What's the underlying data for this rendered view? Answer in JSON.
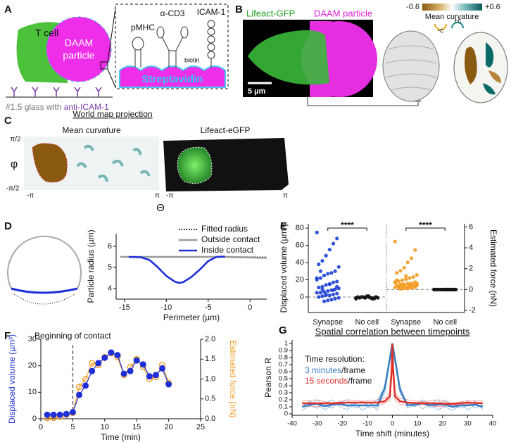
{
  "panel_a": {
    "label": "A",
    "cell": "T cell",
    "particle": [
      "DAAM",
      "particle"
    ],
    "pmhc": "pMHC",
    "cd3": "α-CD3",
    "icam": "ICAM-1",
    "biotin": "biotin",
    "streptavidin": "Streptavidin",
    "glass": "#1.5 glass with",
    "coating": "anti-ICAM-1"
  },
  "panel_b": {
    "label": "B",
    "channel_1": "Lifeact-GFP",
    "channel_2": "DAAM particle",
    "scale_bar": "5 µm",
    "colorbar_title": "Mean curvature",
    "colorbar_min": "-0.6",
    "colorbar_max": "+0.6",
    "neg": "-c",
    "pos": "+c"
  },
  "panel_c": {
    "label": "C",
    "title": "World map projection",
    "map_1": "Mean curvature",
    "map_2": "Lifeact-eGFP",
    "y_top": "π/2",
    "y_axis": "φ",
    "y_bottom": "-π/2",
    "x_left": "-π",
    "x_right": "π",
    "x_axis": "Θ"
  },
  "chart_data": [
    {
      "type": "line",
      "panel": "D",
      "xlabel": "Perimeter (µm)",
      "ylabel": "Particle radius (µm)",
      "xlim": [
        -16,
        2
      ],
      "xticks": [
        -15,
        -10,
        -5,
        0
      ],
      "ylim": [
        3.5,
        6.6
      ],
      "yticks": [
        4,
        5,
        6
      ],
      "legend": "upper right",
      "series": [
        {
          "name": "Fitted radius",
          "color": "#000000",
          "style": "dotted",
          "x": [
            -15.5,
            2
          ],
          "values": [
            5.5,
            5.5
          ]
        },
        {
          "name": "Outside contact",
          "color": "#999999",
          "style": "thick",
          "x": [
            -15.5,
            -14.5,
            -3,
            2
          ],
          "values": [
            5.5,
            5.5,
            5.5,
            5.45
          ]
        },
        {
          "name": "Inside contact",
          "color": "#1f2fd8",
          "style": "thick",
          "x": [
            -14.5,
            -13,
            -12,
            -11,
            -10,
            -9,
            -8.5,
            -8,
            -7,
            -6,
            -5,
            -4,
            -3
          ],
          "values": [
            5.5,
            5.48,
            5.35,
            5.0,
            4.6,
            4.33,
            4.27,
            4.3,
            4.55,
            4.9,
            5.3,
            5.5,
            5.52
          ]
        }
      ]
    },
    {
      "type": "strip",
      "panel": "E",
      "ylabel": "Displaced volume (µm³)",
      "y2label": "Estimated force (nN)",
      "categories": [
        "Synapse",
        "No cell",
        "Synapse",
        "No cell"
      ],
      "ylim": [
        -18,
        85
      ],
      "yticks": [
        0,
        20,
        40,
        60,
        80
      ],
      "y2lim": [
        -2.2,
        6.3
      ],
      "y2ticks": [
        -2,
        0,
        2,
        4,
        6
      ],
      "significance": [
        "****",
        "****"
      ],
      "series": [
        {
          "color": "#1c3fd6",
          "values": [
            75,
            68,
            62,
            55,
            48,
            42,
            38,
            35,
            30,
            28,
            27,
            25,
            22,
            20,
            18,
            17,
            15,
            14,
            12,
            11,
            10,
            9,
            8,
            7,
            6,
            5,
            5,
            4,
            3,
            2,
            2,
            1,
            0,
            -1,
            -2,
            -3,
            -4,
            -5,
            30,
            22,
            12,
            8,
            15,
            3,
            9
          ]
        },
        {
          "color": "#111111",
          "values": [
            -1,
            0,
            -2,
            1,
            -1,
            0,
            0,
            -1,
            -2,
            -1,
            1,
            0,
            -1,
            -2,
            0,
            -1,
            0,
            -1
          ]
        },
        {
          "color": "#f39a1e",
          "axis": "y2",
          "values": [
            4.6,
            3.8,
            3.0,
            2.6,
            2.1,
            1.8,
            1.6,
            1.4,
            1.2,
            1.1,
            1.0,
            0.9,
            0.8,
            0.7,
            0.7,
            0.6,
            0.6,
            0.5,
            0.5,
            0.45,
            0.4,
            0.4,
            0.35,
            0.3,
            0.3,
            0.25,
            0.2,
            0.2,
            0.15,
            0.1,
            0.1,
            0.05,
            0.9,
            0.6,
            0.4,
            0.3,
            1.3,
            0.5,
            0.2,
            0.7
          ]
        },
        {
          "color": "#111111",
          "axis": "y2",
          "values": [
            0,
            0,
            0,
            0,
            0,
            0,
            0,
            0,
            0,
            0,
            0,
            0,
            0,
            0,
            0,
            0,
            0,
            0
          ]
        }
      ]
    },
    {
      "type": "line",
      "panel": "F",
      "xlabel": "Time (min)",
      "ylabel": "Displaced volume (µm³)",
      "y2label": "Estimated force (nN)",
      "annotation": "Beginning of contact",
      "vline": 5,
      "xlim": [
        0,
        25
      ],
      "xticks": [
        0,
        5,
        10,
        15,
        20,
        25
      ],
      "ylim": [
        0,
        30
      ],
      "yticks": [
        0,
        10,
        20,
        30
      ],
      "y2lim": [
        0,
        2
      ],
      "y2ticks": [
        {
          "value": 0,
          "label": "0.0"
        },
        0.5,
        {
          "value": 1,
          "label": "1.0"
        },
        1.5,
        {
          "value": 2,
          "label": "2.0"
        }
      ],
      "series": [
        {
          "color": "#f39a1e",
          "axis": "y2",
          "style": "thin",
          "marker": "open",
          "x": [
            1,
            2,
            3,
            4,
            5,
            6,
            7,
            8,
            9,
            10,
            11,
            12,
            13,
            14,
            15,
            16,
            17,
            18,
            19,
            20
          ],
          "values": [
            0.02,
            0.02,
            0.05,
            0.1,
            0.15,
            0.8,
            1.0,
            1.4,
            1.35,
            1.55,
            1.65,
            1.55,
            1.1,
            1.3,
            1.5,
            1.3,
            1.0,
            1.05,
            1.35,
            0.9
          ]
        },
        {
          "color": "#1f2fd8",
          "style": "thin",
          "marker": "filled",
          "x": [
            1,
            2,
            3,
            4,
            5,
            6,
            7,
            8,
            9,
            10,
            11,
            12,
            13,
            14,
            15,
            16,
            17,
            18,
            19,
            20
          ],
          "values": [
            1.5,
            1.5,
            1.5,
            1.8,
            2.5,
            9,
            12.5,
            18,
            21,
            23,
            25,
            24,
            17,
            18,
            22,
            20.5,
            16,
            16.5,
            19,
            13
          ]
        }
      ]
    },
    {
      "type": "line",
      "panel": "G",
      "title": "Spatial correlation between timepoints",
      "xlabel": "Time shift (minutes)",
      "ylabel": "Pearson R",
      "annotation": "Time resolution:",
      "annotation_lines": [
        {
          "highlight": "3 minutes",
          "rest": "/frame",
          "color": "#3a7fc4"
        },
        {
          "highlight": "15 seconds",
          "rest": "/frame",
          "color": "#e0302a"
        }
      ],
      "xlim": [
        -40,
        40
      ],
      "xticks": [
        -40,
        -30,
        -20,
        -10,
        0,
        10,
        20,
        30,
        40
      ],
      "ylim": [
        -0.02,
        1.05
      ],
      "yticks": [
        0,
        0.1,
        0.2,
        0.3,
        0.4,
        0.5,
        0.6,
        0.7,
        0.8,
        0.9,
        1
      ],
      "series": [
        {
          "color": "#7fb0dc",
          "style": "hair",
          "x": [
            -36,
            -33,
            -30,
            -27,
            -24,
            -21,
            -18,
            -15,
            -12,
            -9,
            -6,
            -3,
            0,
            3,
            6,
            9,
            12,
            15,
            18,
            21,
            24,
            27,
            30,
            33,
            36
          ],
          "values": [
            0.15,
            0.1,
            0.2,
            0.12,
            0.08,
            0.18,
            0.1,
            0.15,
            0.05,
            0.12,
            0.2,
            0.38,
            1,
            0.36,
            0.15,
            0.1,
            0.18,
            0.08,
            0.12,
            0.2,
            0.1,
            0.15,
            0.06,
            0.12,
            0.1
          ]
        },
        {
          "color": "#7fb0dc",
          "style": "hair",
          "x": [
            -36,
            -33,
            -30,
            -27,
            -24,
            -21,
            -18,
            -15,
            -12,
            -9,
            -6,
            -3,
            0,
            3,
            6,
            9,
            12,
            15,
            18,
            21,
            24,
            27,
            30,
            33,
            36
          ],
          "values": [
            0.05,
            0.12,
            0.08,
            0.15,
            0.2,
            0.1,
            0.06,
            0.14,
            0.18,
            0.08,
            0.1,
            0.3,
            1,
            0.3,
            0.12,
            0.16,
            0.07,
            0.14,
            0.2,
            0.1,
            0.05,
            0.12,
            0.18,
            0.08,
            0.14
          ]
        },
        {
          "color": "#7fb0dc",
          "style": "hair",
          "x": [
            -36,
            -33,
            -30,
            -27,
            -24,
            -21,
            -18,
            -15,
            -12,
            -9,
            -6,
            -3,
            0,
            3,
            6,
            9,
            12,
            15,
            18,
            21,
            24,
            27,
            30,
            33,
            36
          ],
          "values": [
            0.1,
            0.18,
            0.14,
            0.06,
            0.12,
            0.15,
            0.2,
            0.08,
            0.12,
            0.16,
            0.05,
            0.42,
            1,
            0.4,
            0.08,
            0.12,
            0.2,
            0.15,
            0.06,
            0.1,
            0.16,
            0.08,
            0.12,
            0.18,
            0.06
          ]
        },
        {
          "color": "#f08a86",
          "style": "hair",
          "x": [
            -36,
            -30,
            -24,
            -18,
            -12,
            -6,
            -3,
            -1,
            -0.25,
            0,
            0.25,
            1,
            3,
            6,
            12,
            18,
            24,
            30,
            36
          ],
          "values": [
            0.18,
            0.2,
            0.15,
            0.2,
            0.18,
            0.2,
            0.22,
            0.3,
            0.7,
            1,
            0.7,
            0.3,
            0.22,
            0.2,
            0.17,
            0.2,
            0.15,
            0.19,
            0.18
          ]
        },
        {
          "color": "#f08a86",
          "style": "hair",
          "x": [
            -36,
            -30,
            -24,
            -18,
            -12,
            -6,
            -3,
            -1,
            -0.25,
            0,
            0.25,
            1,
            3,
            6,
            12,
            18,
            24,
            30,
            36
          ],
          "values": [
            0.12,
            0.1,
            0.14,
            0.11,
            0.13,
            0.12,
            0.15,
            0.2,
            0.6,
            1,
            0.6,
            0.2,
            0.14,
            0.12,
            0.13,
            0.1,
            0.12,
            0.14,
            0.11
          ]
        },
        {
          "color": "#3a7fc4",
          "style": "thick",
          "x": [
            -36,
            -33,
            -30,
            -27,
            -24,
            -21,
            -18,
            -15,
            -12,
            -9,
            -6,
            -3,
            0,
            3,
            6,
            9,
            12,
            15,
            18,
            21,
            24,
            27,
            30,
            33,
            36
          ],
          "values": [
            0.1,
            0.13,
            0.14,
            0.11,
            0.13,
            0.14,
            0.12,
            0.12,
            0.12,
            0.12,
            0.12,
            0.37,
            1,
            0.35,
            0.12,
            0.13,
            0.15,
            0.12,
            0.13,
            0.13,
            0.1,
            0.12,
            0.12,
            0.13,
            0.1
          ]
        },
        {
          "color": "#e0302a",
          "style": "thick",
          "x": [
            -36,
            -30,
            -24,
            -18,
            -12,
            -6,
            -3,
            -1,
            -0.25,
            0,
            0.25,
            1,
            3,
            6,
            12,
            18,
            24,
            30,
            36
          ],
          "values": [
            0.15,
            0.15,
            0.15,
            0.16,
            0.16,
            0.16,
            0.18,
            0.25,
            0.65,
            1,
            0.65,
            0.25,
            0.18,
            0.16,
            0.15,
            0.15,
            0.14,
            0.16,
            0.15
          ]
        }
      ]
    }
  ]
}
